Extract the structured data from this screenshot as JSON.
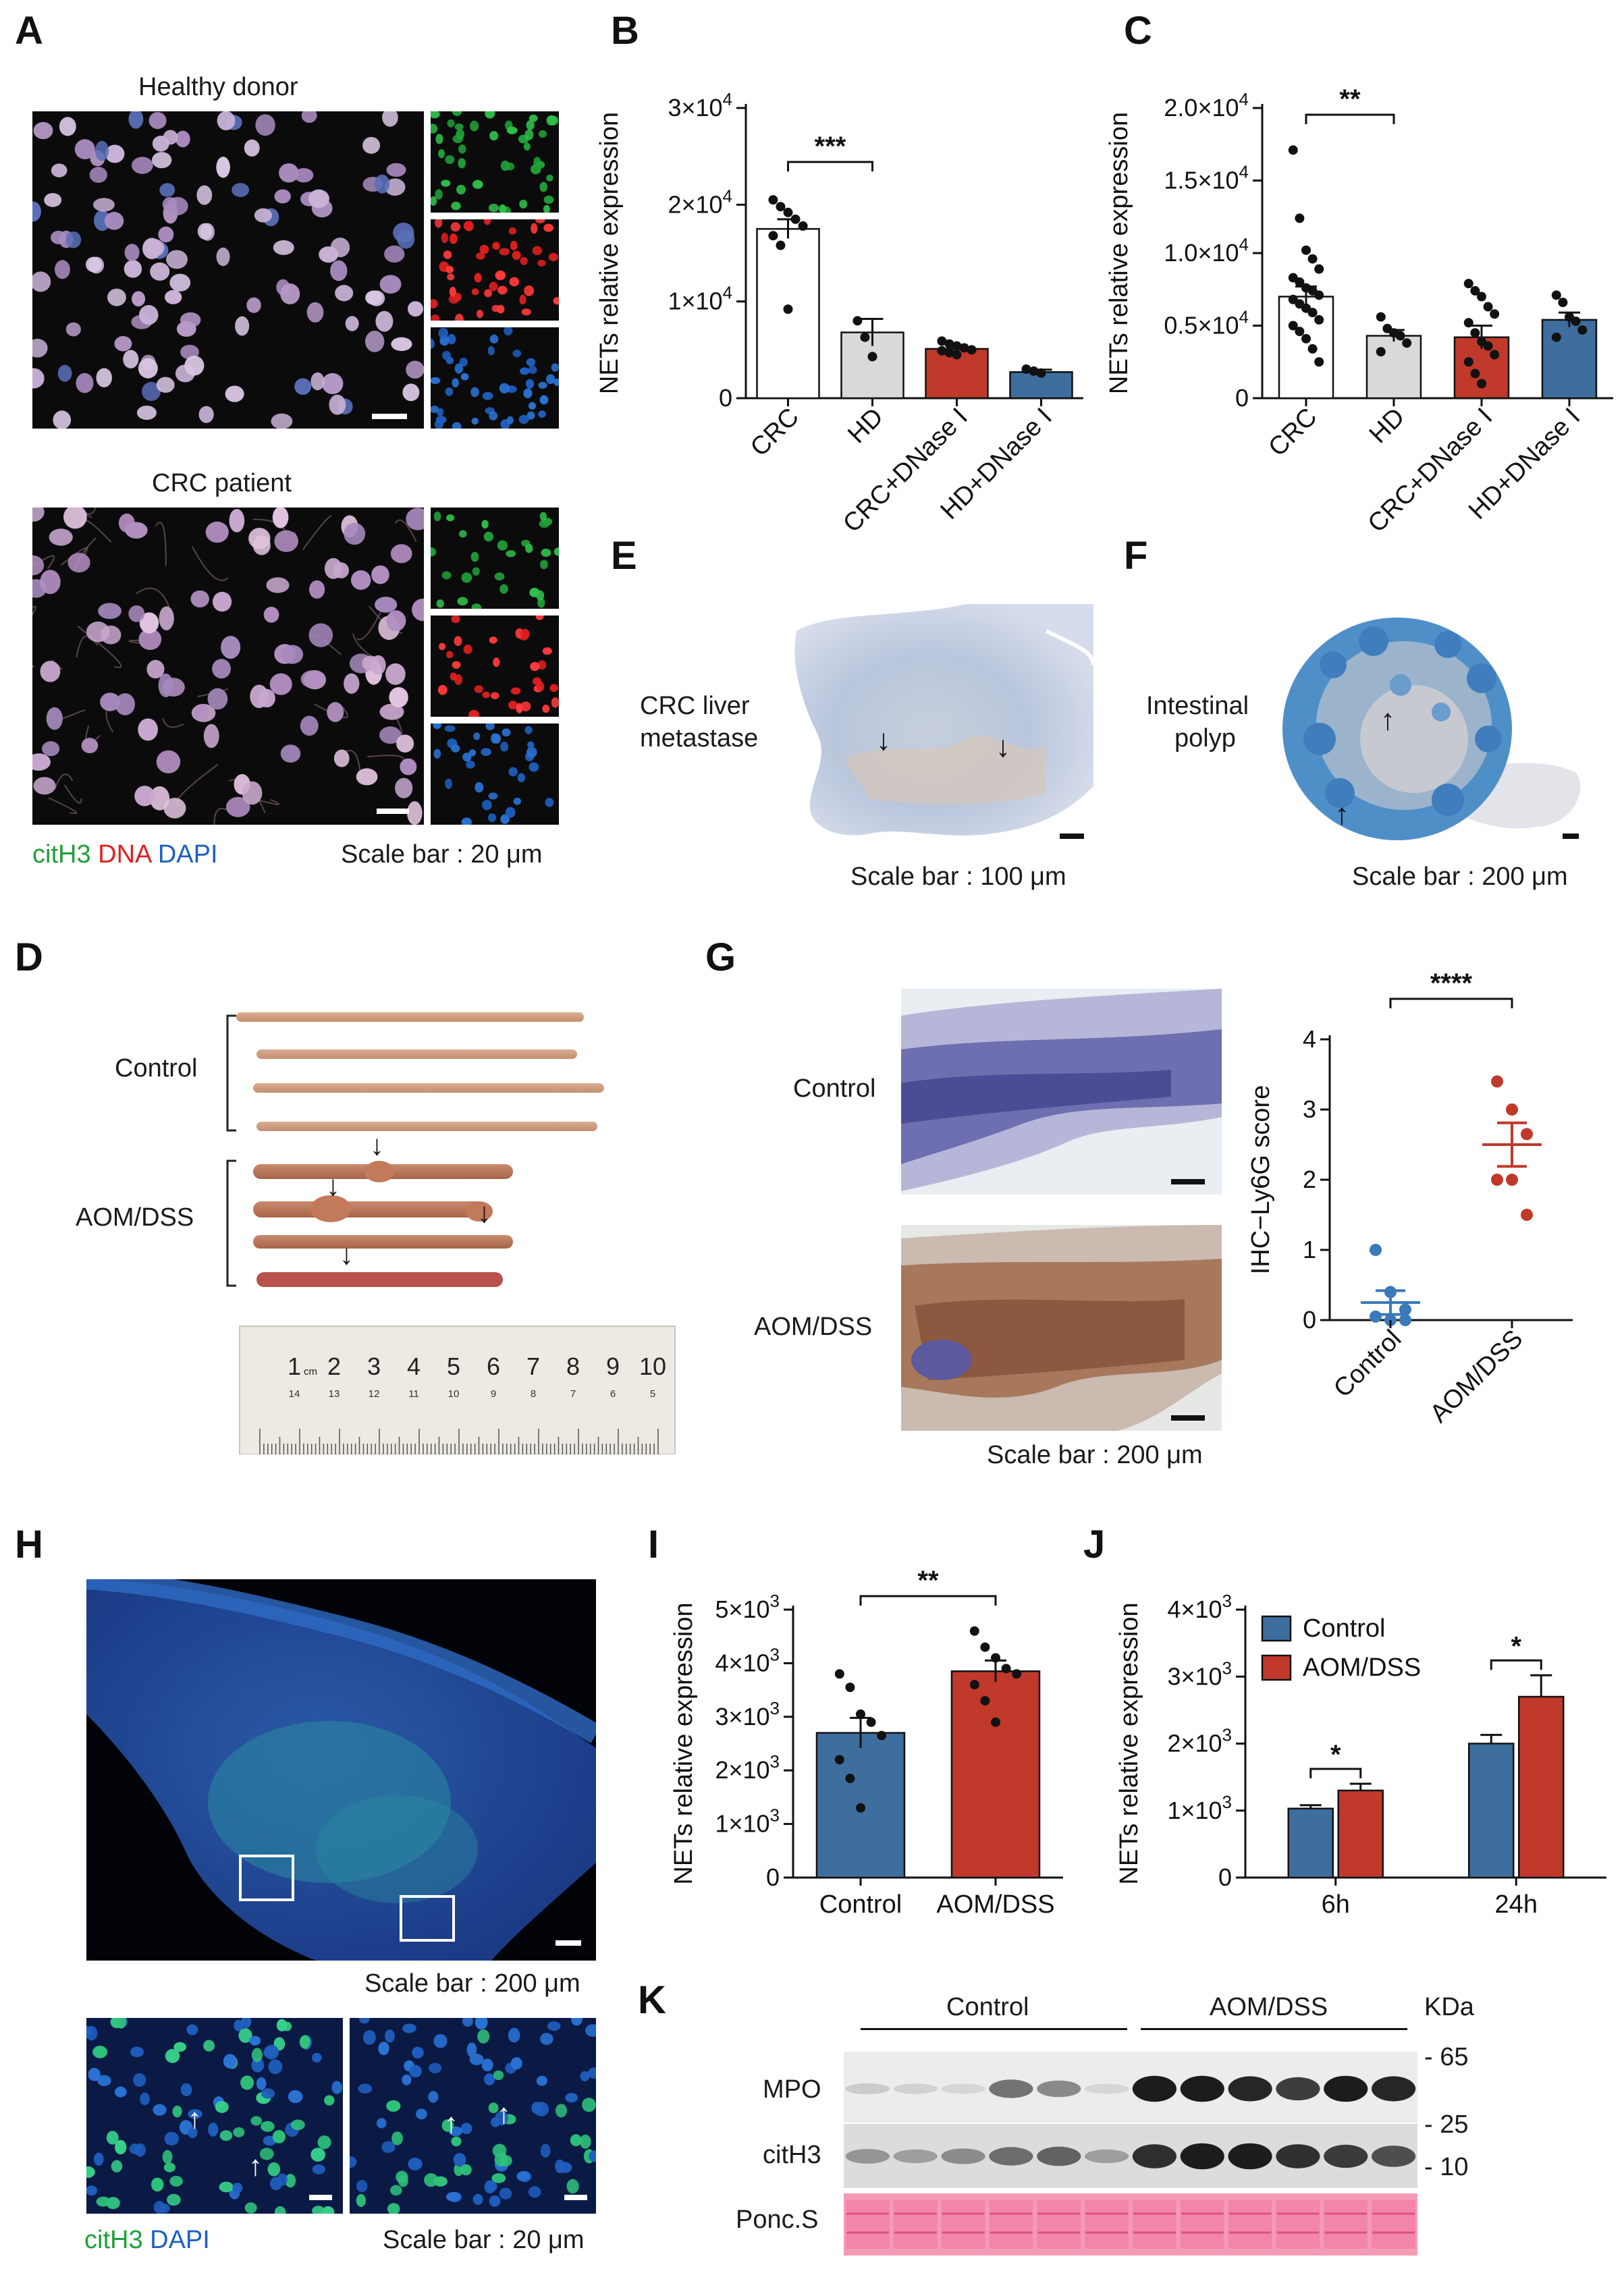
{
  "panel_labels": {
    "a": "A",
    "b": "B",
    "c": "C",
    "d": "D",
    "e": "E",
    "f": "F",
    "g": "G",
    "h": "H",
    "i": "I",
    "j": "J",
    "k": "K"
  },
  "panel_a": {
    "healthy_title": "Healthy donor",
    "crc_title": "CRC patient",
    "legend_citH3": "citH3",
    "legend_dna": "DNA",
    "legend_dapi": "DAPI",
    "scale_bar": "Scale bar : 20 μm",
    "colors": {
      "citH3": "#1fa038",
      "dna": "#e02020",
      "dapi": "#1f5fbf"
    }
  },
  "panel_e": {
    "label_line1": "CRC liver",
    "label_line2": "metastase",
    "scale_bar": "Scale bar : 100 μm"
  },
  "panel_f": {
    "label_line1": "Intestinal",
    "label_line2": "polyp",
    "scale_bar": "Scale bar : 200 μm"
  },
  "panel_d": {
    "control": "Control",
    "aom": "AOM/DSS",
    "ruler_top": [
      "1",
      "2",
      "3",
      "4",
      "5",
      "6",
      "7",
      "8",
      "9",
      "10"
    ],
    "ruler_cm": "cm",
    "ruler_bottom": [
      "14",
      "13",
      "12",
      "11",
      "10",
      "9",
      "8",
      "7",
      "6",
      "5"
    ]
  },
  "panel_g": {
    "control": "Control",
    "aom": "AOM/DSS",
    "scale_bar": "Scale bar : 200 μm"
  },
  "panel_h": {
    "scale_bar_top": "Scale bar : 200 μm",
    "scale_bar_bottom": "Scale bar : 20 μm",
    "legend_citH3": "citH3",
    "legend_dapi": "DAPI"
  },
  "panel_k": {
    "control": "Control",
    "aom": "AOM/DSS",
    "kda": "KDa",
    "rows": [
      "MPO",
      "citH3",
      "Ponc.S"
    ],
    "markers": [
      "65",
      "25",
      "10"
    ]
  },
  "chart_data": [
    {
      "panel": "B",
      "type": "bar",
      "ylabel": "NETs relative expression",
      "yticks": [
        "0",
        "1×10⁴",
        "2×10⁴",
        "3×10⁴"
      ],
      "ylim": [
        0,
        30000
      ],
      "categories": [
        "CRC",
        "HD",
        "CRC+DNase I",
        "HD+DNase I"
      ],
      "values": [
        17500,
        6800,
        5100,
        2700
      ],
      "sem": [
        1000,
        1400,
        400,
        250
      ],
      "colors": [
        "#ffffff",
        "#d9d9d9",
        "#c0392b",
        "#3d6e9e"
      ],
      "points": [
        [
          20500,
          19800,
          19200,
          18500,
          17800,
          16800,
          15800,
          9200
        ],
        [
          8000,
          6300,
          4300
        ],
        [
          5900,
          5600,
          5400,
          5200,
          5000,
          4900,
          4700,
          4500
        ],
        [
          3000,
          2800,
          2600
        ]
      ],
      "significance": {
        "from": 0,
        "to": 1,
        "label": "***"
      }
    },
    {
      "panel": "C",
      "type": "bar",
      "ylabel": "NETs relative expression",
      "yticks": [
        "0",
        "0.5×10⁴",
        "1.0×10⁴",
        "1.5×10⁴",
        "2.0×10⁴"
      ],
      "ylim": [
        0,
        20000
      ],
      "categories": [
        "CRC",
        "HD",
        "CRC+DNase I",
        "HD+DNase I"
      ],
      "values": [
        7000,
        4300,
        4200,
        5400
      ],
      "sem": [
        700,
        400,
        800,
        500
      ],
      "colors": [
        "#ffffff",
        "#d9d9d9",
        "#c0392b",
        "#3d6e9e"
      ],
      "points": [
        [
          17100,
          12400,
          10200,
          9600,
          8900,
          8300,
          8000,
          7600,
          7400,
          7100,
          6800,
          6500,
          6200,
          5900,
          5400,
          5000,
          4600,
          4100,
          3400,
          2500
        ],
        [
          5600,
          4800,
          4500,
          4300,
          3800,
          3200
        ],
        [
          7900,
          7400,
          7000,
          6300,
          5800,
          5200,
          4500,
          3900,
          3600,
          3000,
          2500,
          1700,
          1000
        ],
        [
          7100,
          6600,
          5600,
          5300,
          4700,
          4200
        ]
      ],
      "significance": {
        "from": 0,
        "to": 1,
        "label": "**"
      }
    },
    {
      "panel": "G",
      "type": "scatter",
      "ylabel": "IHC−Ly6G score",
      "yticks": [
        "0",
        "1",
        "2",
        "3",
        "4"
      ],
      "ylim": [
        0,
        4
      ],
      "categories": [
        "Control",
        "AOM/DSS"
      ],
      "means": [
        0.25,
        2.5
      ],
      "sem": [
        0.17,
        0.31
      ],
      "colors": [
        "#3a7ab8",
        "#c0392b"
      ],
      "points": [
        [
          1.0,
          0.4,
          0.15,
          0.05,
          0.0,
          0.0
        ],
        [
          3.4,
          3.0,
          2.65,
          2.0,
          2.0,
          1.5
        ]
      ],
      "significance": {
        "from": 0,
        "to": 1,
        "label": "****"
      }
    },
    {
      "panel": "I",
      "type": "bar",
      "ylabel": "NETs relative expression",
      "yticks": [
        "0",
        "1×10³",
        "2×10³",
        "3×10³",
        "4×10³",
        "5×10³"
      ],
      "ylim": [
        0,
        5000
      ],
      "categories": [
        "Control",
        "AOM/DSS"
      ],
      "values": [
        2700,
        3850
      ],
      "sem": [
        280,
        200
      ],
      "colors": [
        "#3d6e9e",
        "#c0392b"
      ],
      "points": [
        [
          3800,
          3550,
          3050,
          2900,
          2650,
          2200,
          1850,
          1300
        ],
        [
          4600,
          4300,
          4100,
          3900,
          3800,
          3600,
          3300,
          2900
        ]
      ],
      "significance": {
        "from": 0,
        "to": 1,
        "label": "**"
      }
    },
    {
      "panel": "J",
      "type": "bar",
      "ylabel": "NETs relative expression",
      "yticks": [
        "0",
        "1×10³",
        "2×10³",
        "3×10³",
        "4×10³"
      ],
      "ylim": [
        0,
        4000
      ],
      "categories": [
        "6h",
        "24h"
      ],
      "series": [
        {
          "name": "Control",
          "values": [
            1030,
            2000
          ],
          "sem": [
            50,
            130
          ],
          "color": "#3d6e9e"
        },
        {
          "name": "AOM/DSS",
          "values": [
            1300,
            2700
          ],
          "sem": [
            100,
            320
          ],
          "color": "#c0392b"
        }
      ],
      "legend": "top-left",
      "significance": [
        {
          "group": 0,
          "label": "*"
        },
        {
          "group": 1,
          "label": "*"
        }
      ]
    }
  ]
}
